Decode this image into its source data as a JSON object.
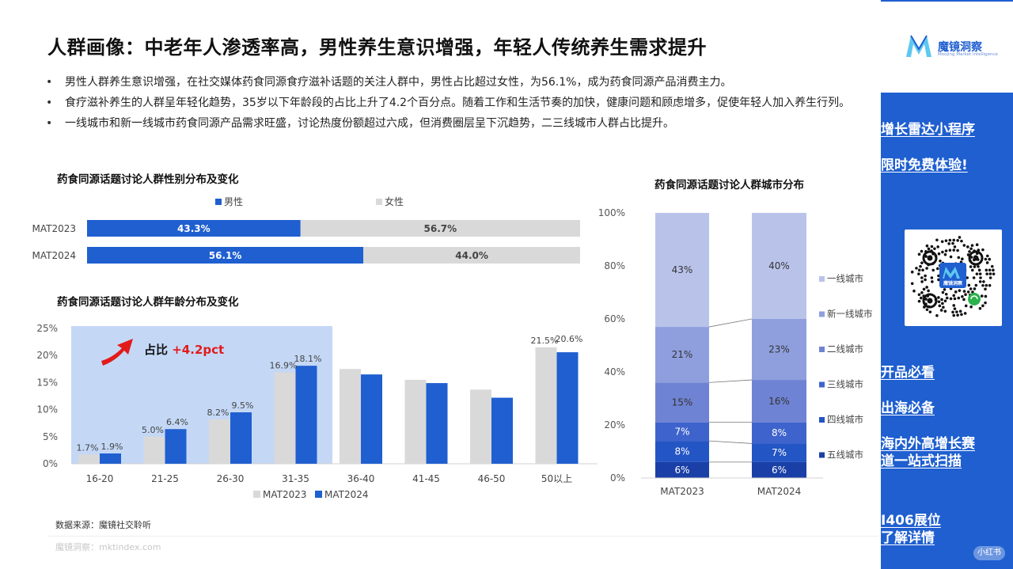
{
  "title": "人群画像：中老年人渗透率高，男性养生意识增强，年轻人传统养生需求提升",
  "bullets": [
    "男性人群养生意识增强，在社交媒体药食同源食疗滋补话题的关注人群中，男性占比超过女性，为56.1%，成为药食同源产品消费主力。",
    "食疗滋补养生的人群呈年轻化趋势，35岁以下年龄段的占比上升了4.2个百分点。随着工作和生活节奏的加快，健康问题和顾虑增多，促使年轻人加入养生行列。",
    "一线城市和新一线城市药食同源产品需求旺盛，讨论热度份额超过六成，但消费圈层呈下沉趋势，二三线城市人群占比提升。"
  ],
  "colors": {
    "blue": "#1f5fd0",
    "gray": "#d9d9d9",
    "highlight": "#c4d8f6",
    "city": [
      "#b9c3ea",
      "#8f9fde",
      "#6f83d4",
      "#3f63cc",
      "#2455c4",
      "#1a3fa6"
    ]
  },
  "footer": {
    "source": "数据来源：魔镜社交聆听",
    "watermark": "魔镜洞察：mktindex.com"
  },
  "sidebar": {
    "brand_name": "魔镜洞察",
    "brand_sub": "Moojing Market Intelligence",
    "promo1": "增长雷达小程序",
    "promo2": "限时免费体验!",
    "qr_label": "魔镜洞察",
    "link1": "开品必看",
    "link2": "出海必备",
    "link3_line1": "海内外高增长赛",
    "link3_line2": "道一站式扫描",
    "link4_line1": "I406展位",
    "link4_line2": "了解详情",
    "corner": "小红书"
  },
  "chart_data": [
    {
      "type": "bar",
      "orientation": "horizontal-stacked",
      "title": "药食同源话题讨论人群性别分布及变化",
      "categories": [
        "MAT2023",
        "MAT2024"
      ],
      "series": [
        {
          "name": "男性",
          "values": [
            43.3,
            56.1
          ],
          "labels": [
            "43.3%",
            "56.1%"
          ]
        },
        {
          "name": "女性",
          "values": [
            56.7,
            44.0
          ],
          "labels": [
            "56.7%",
            "44.0%"
          ]
        }
      ],
      "legend": "top"
    },
    {
      "type": "bar",
      "title": "药食同源话题讨论人群年龄分布及变化",
      "categories": [
        "16-20",
        "21-25",
        "26-30",
        "31-35",
        "36-40",
        "41-45",
        "46-50",
        "50以上"
      ],
      "series": [
        {
          "name": "MAT2023",
          "values": [
            1.7,
            5.0,
            8.2,
            16.9,
            17.5,
            15.5,
            13.7,
            21.5
          ],
          "labels": [
            "1.7%",
            "5.0%",
            "8.2%",
            "16.9%",
            "",
            "",
            "",
            "21.5%"
          ]
        },
        {
          "name": "MAT2024",
          "values": [
            1.9,
            6.4,
            9.5,
            18.1,
            16.5,
            14.9,
            12.2,
            20.6
          ],
          "labels": [
            "1.9%",
            "6.4%",
            "9.5%",
            "18.1%",
            "",
            "",
            "",
            "20.6%"
          ]
        }
      ],
      "yticks": [
        "0%",
        "5%",
        "10%",
        "15%",
        "20%",
        "25%"
      ],
      "ylim": [
        0,
        25
      ],
      "annotation": {
        "prefix": "占比 ",
        "value": "+4.2pct"
      },
      "legend": "bottom"
    },
    {
      "type": "bar",
      "orientation": "vertical-stacked-100",
      "title": "药食同源话题讨论人群城市分布",
      "categories": [
        "MAT2023",
        "MAT2024"
      ],
      "series": [
        {
          "name": "五线城市",
          "values": [
            6,
            6
          ]
        },
        {
          "name": "四线城市",
          "values": [
            8,
            7
          ]
        },
        {
          "name": "三线城市",
          "values": [
            7,
            8
          ]
        },
        {
          "name": "二线城市",
          "values": [
            15,
            16
          ]
        },
        {
          "name": "新一线城市",
          "values": [
            21,
            23
          ]
        },
        {
          "name": "一线城市",
          "values": [
            43,
            40
          ]
        }
      ],
      "yticks": [
        "0%",
        "20%",
        "40%",
        "60%",
        "80%",
        "100%"
      ],
      "ylim": [
        0,
        100
      ],
      "legend": "right"
    }
  ]
}
